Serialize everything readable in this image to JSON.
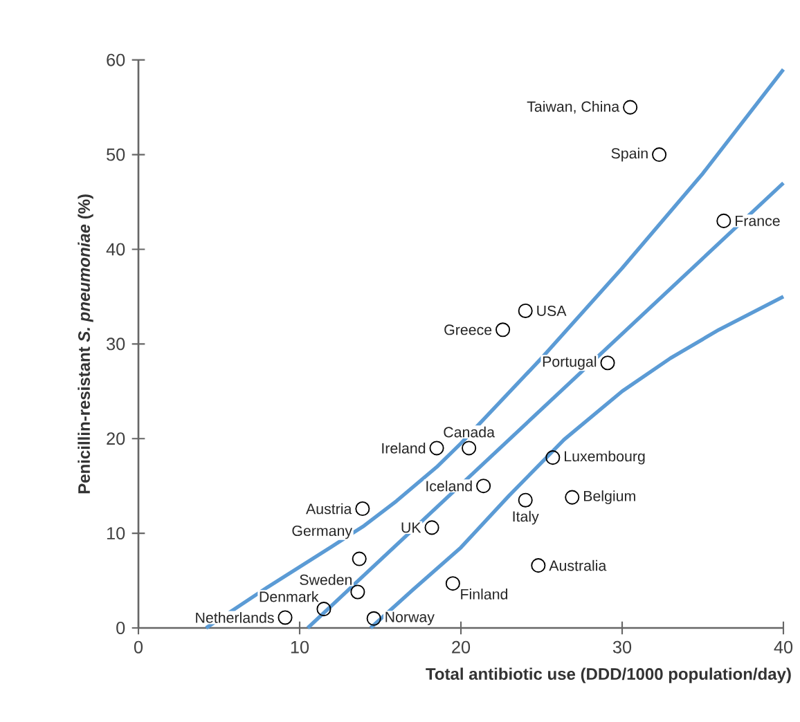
{
  "chart_data": {
    "type": "scatter",
    "xlabel": "Total antibiotic use (DDD/1000 population/day)",
    "ylabel": "Penicillin-resistant *S. pneumoniae* (%)",
    "xlim": [
      0,
      40
    ],
    "ylim": [
      0,
      60
    ],
    "xticks": [
      0,
      10,
      20,
      30,
      40
    ],
    "yticks": [
      0,
      10,
      20,
      30,
      40,
      50,
      60
    ],
    "series": [
      {
        "type": "scatter",
        "color": "#000000",
        "marker": "circle",
        "x": [
          30.5,
          32.3,
          36.3,
          24.0,
          22.6,
          29.1,
          20.5,
          18.5,
          25.7,
          21.4,
          24.0,
          26.9,
          13.9,
          18.2,
          13.7,
          24.8,
          19.5,
          13.6,
          11.5,
          9.1,
          14.6
        ],
        "values": [
          55,
          50,
          43,
          33.5,
          31.5,
          28,
          19,
          19,
          18,
          15,
          13.5,
          13.8,
          12.6,
          10.6,
          7.3,
          6.6,
          4.7,
          3.8,
          2,
          1.1,
          1
        ]
      },
      {
        "type": "line",
        "color": "#5b9bd5",
        "x": [
          4.2,
          8,
          12,
          14,
          16,
          18.5,
          20,
          25,
          30,
          35,
          40
        ],
        "values": [
          0,
          4.3,
          8.6,
          10.8,
          13.4,
          17,
          19.5,
          28.5,
          38,
          48,
          59
        ]
      },
      {
        "type": "line",
        "color": "#5b9bd5",
        "x": [
          10.5,
          40
        ],
        "values": [
          0,
          47
        ]
      },
      {
        "type": "line",
        "color": "#5b9bd5",
        "x": [
          14.4,
          17,
          20,
          23,
          26.4,
          30,
          33,
          36,
          40
        ],
        "values": [
          0,
          4,
          8.5,
          14,
          19.9,
          25,
          28.5,
          31.5,
          35
        ]
      }
    ],
    "annotations": [
      {
        "text": "Taiwan, China",
        "x": 30.5,
        "y": 55
      },
      {
        "text": "Spain",
        "x": 32.3,
        "y": 50
      },
      {
        "text": "France",
        "x": 36.3,
        "y": 43
      },
      {
        "text": "USA",
        "x": 24.0,
        "y": 33.5
      },
      {
        "text": "Greece",
        "x": 22.6,
        "y": 31.5
      },
      {
        "text": "Portugal",
        "x": 29.1,
        "y": 28
      },
      {
        "text": "Canada",
        "x": 20.5,
        "y": 19
      },
      {
        "text": "Ireland",
        "x": 18.5,
        "y": 19
      },
      {
        "text": "Luxembourg",
        "x": 25.7,
        "y": 18
      },
      {
        "text": "Iceland",
        "x": 21.4,
        "y": 15
      },
      {
        "text": "Italy",
        "x": 24.0,
        "y": 13.5
      },
      {
        "text": "Belgium",
        "x": 26.9,
        "y": 13.8
      },
      {
        "text": "Austria",
        "x": 13.9,
        "y": 12.6
      },
      {
        "text": "UK",
        "x": 18.2,
        "y": 10.6
      },
      {
        "text": "Germany",
        "x": 13.7,
        "y": 7.3
      },
      {
        "text": "Australia",
        "x": 24.8,
        "y": 6.6
      },
      {
        "text": "Finland",
        "x": 19.5,
        "y": 4.7
      },
      {
        "text": "Sweden",
        "x": 13.6,
        "y": 3.8
      },
      {
        "text": "Denmark",
        "x": 11.5,
        "y": 2
      },
      {
        "text": "Netherlands",
        "x": 9.1,
        "y": 1.1
      },
      {
        "text": "Norway",
        "x": 14.6,
        "y": 1
      }
    ]
  }
}
